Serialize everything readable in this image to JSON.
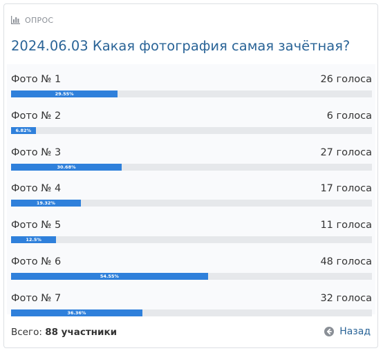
{
  "header": {
    "label": "ОПРОС",
    "icon": "bar-chart-icon"
  },
  "title": "2024.06.03 Какая фотография самая зачётная?",
  "options": [
    {
      "label": "Фото № 1",
      "count": "26 голоса",
      "percent": 29.55,
      "percent_label": "29.55%"
    },
    {
      "label": "Фото № 2",
      "count": "6 голоса",
      "percent": 6.82,
      "percent_label": "6.82%"
    },
    {
      "label": "Фото № 3",
      "count": "27 голоса",
      "percent": 30.68,
      "percent_label": "30.68%"
    },
    {
      "label": "Фото № 4",
      "count": "17 голоса",
      "percent": 19.32,
      "percent_label": "19.32%"
    },
    {
      "label": "Фото № 5",
      "count": "11 голоса",
      "percent": 12.5,
      "percent_label": "12.5%"
    },
    {
      "label": "Фото № 6",
      "count": "48 голоса",
      "percent": 54.55,
      "percent_label": "54.55%"
    },
    {
      "label": "Фото № 7",
      "count": "32 голоса",
      "percent": 36.36,
      "percent_label": "36.36%"
    }
  ],
  "footer": {
    "total_prefix": "Всего:",
    "total_value": "88 участники",
    "back_label": "Назад",
    "back_icon": "arrow-left-circle-icon"
  },
  "colors": {
    "accent": "#2a6497",
    "bar": "#2f80db",
    "track": "#e6e8eb"
  }
}
